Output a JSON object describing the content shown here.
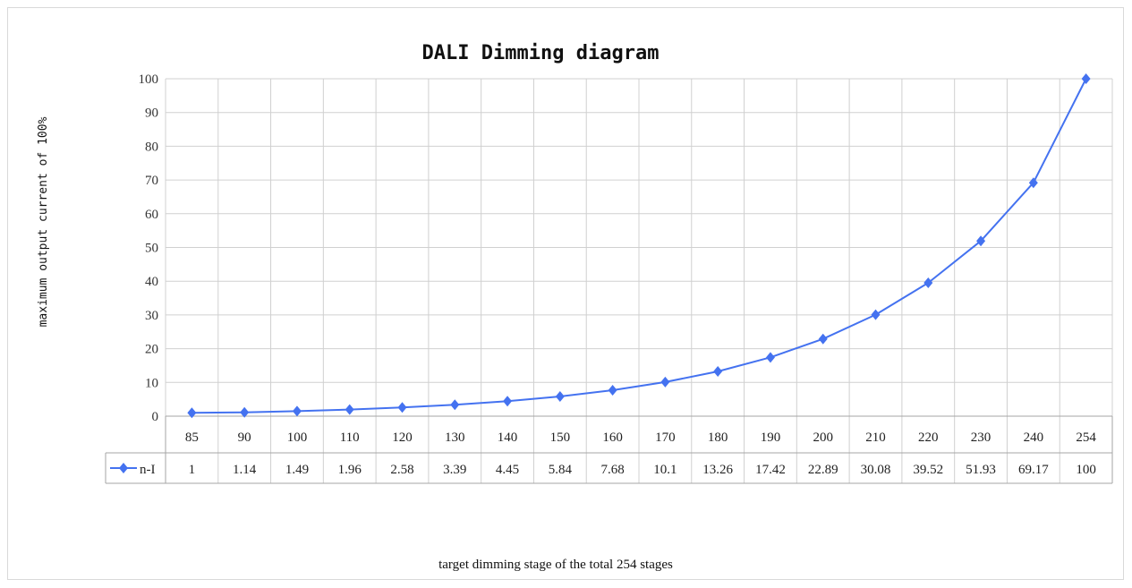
{
  "chart_data": {
    "type": "line",
    "title": "DALI Dimming diagram",
    "xlabel": "target dimming stage of the total 254 stages",
    "ylabel": "maximum output current of 100%",
    "categories": [
      "85",
      "90",
      "100",
      "110",
      "120",
      "130",
      "140",
      "150",
      "160",
      "170",
      "180",
      "190",
      "200",
      "210",
      "220",
      "230",
      "240",
      "254"
    ],
    "series": [
      {
        "name": "n-I",
        "values": [
          1,
          1.14,
          1.49,
          1.96,
          2.58,
          3.39,
          4.45,
          5.84,
          7.68,
          10.1,
          13.26,
          17.42,
          22.89,
          30.08,
          39.52,
          51.93,
          69.17,
          100
        ],
        "labels": [
          "1",
          "1.14",
          "1.49",
          "1.96",
          "2.58",
          "3.39",
          "4.45",
          "5.84",
          "7.68",
          "10.1",
          "13.26",
          "17.42",
          "22.89",
          "30.08",
          "39.52",
          "51.93",
          "69.17",
          "100"
        ],
        "color": "#4472f0",
        "marker": "diamond"
      }
    ],
    "ylim": [
      0,
      100
    ],
    "yticks": [
      "0",
      "10",
      "20",
      "30",
      "40",
      "50",
      "60",
      "70",
      "80",
      "90",
      "100"
    ],
    "grid": true,
    "data_table": true
  }
}
